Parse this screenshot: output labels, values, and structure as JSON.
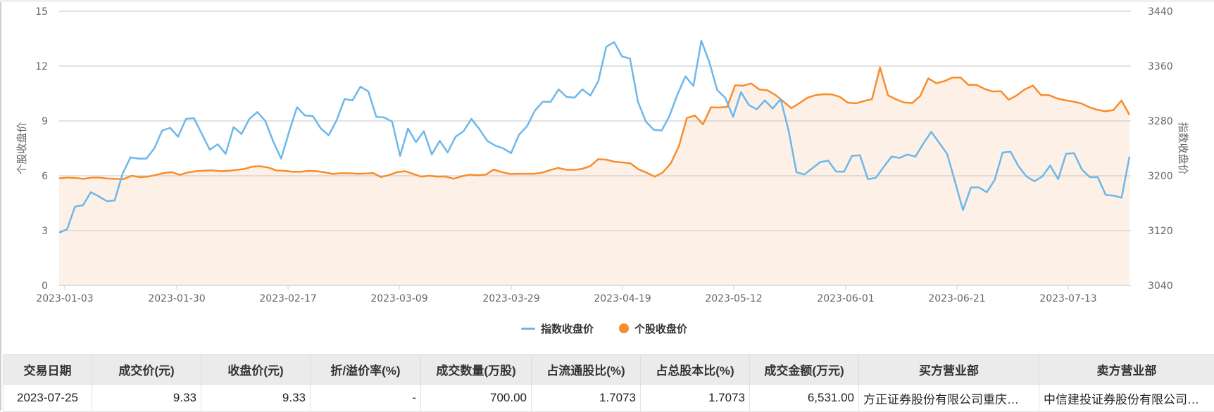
{
  "chart_data": {
    "type": "line",
    "title": "",
    "x_ticks": [
      "2023-01-03",
      "2023-01-30",
      "2023-02-17",
      "2023-03-09",
      "2023-03-29",
      "2023-04-19",
      "2023-05-12",
      "2023-06-01",
      "2023-06-21",
      "2023-07-13"
    ],
    "y_left": {
      "label": "个股收盘价",
      "ticks": [
        "0",
        "3",
        "6",
        "9",
        "12",
        "15"
      ],
      "range": [
        0,
        15
      ]
    },
    "y_right": {
      "label": "指数收盘价",
      "ticks": [
        "3040",
        "3120",
        "3200",
        "3280",
        "3360",
        "3440"
      ],
      "range": [
        3040,
        3440
      ]
    },
    "grid": true,
    "legend_position": "bottom",
    "series": [
      {
        "name": "指数收盘价",
        "axis": "right",
        "color": "#6cb8ea",
        "type": "line",
        "values": [
          3117,
          3122,
          3155,
          3157,
          3176,
          3170,
          3163,
          3164,
          3203,
          3227,
          3225,
          3225,
          3240,
          3266,
          3270,
          3257,
          3283,
          3284,
          3261,
          3238,
          3246,
          3232,
          3271,
          3261,
          3283,
          3293,
          3280,
          3250,
          3225,
          3264,
          3300,
          3288,
          3287,
          3269,
          3259,
          3281,
          3312,
          3310,
          3330,
          3323,
          3286,
          3285,
          3279,
          3229,
          3269,
          3249,
          3265,
          3231,
          3251,
          3234,
          3257,
          3265,
          3283,
          3268,
          3251,
          3244,
          3240,
          3233,
          3260,
          3272,
          3295,
          3308,
          3308,
          3326,
          3315,
          3314,
          3326,
          3317,
          3338,
          3388,
          3395,
          3374,
          3371,
          3308,
          3279,
          3267,
          3266,
          3288,
          3319,
          3345,
          3331,
          3397,
          3366,
          3325,
          3314,
          3286,
          3322,
          3303,
          3297,
          3310,
          3298,
          3312,
          3266,
          3205,
          3202,
          3211,
          3220,
          3222,
          3206,
          3206,
          3229,
          3230,
          3195,
          3197,
          3213,
          3228,
          3226,
          3231,
          3228,
          3247,
          3264,
          3248,
          3232,
          3191,
          3150,
          3183,
          3183,
          3176,
          3194,
          3234,
          3235,
          3214,
          3199,
          3192,
          3199,
          3215,
          3195,
          3232,
          3233,
          3209,
          3198,
          3198,
          3172,
          3171,
          3168,
          3228
        ]
      },
      {
        "name": "个股收盘价",
        "axis": "left",
        "color": "#f98c2b",
        "type": "area",
        "fill": "#fdf0e7",
        "values": [
          5.86,
          5.9,
          5.88,
          5.83,
          5.9,
          5.9,
          5.85,
          5.83,
          5.82,
          6.0,
          5.93,
          5.95,
          6.04,
          6.15,
          6.2,
          6.05,
          6.18,
          6.25,
          6.28,
          6.3,
          6.25,
          6.27,
          6.32,
          6.37,
          6.5,
          6.52,
          6.45,
          6.29,
          6.27,
          6.22,
          6.22,
          6.27,
          6.25,
          6.19,
          6.1,
          6.14,
          6.14,
          6.11,
          6.12,
          6.15,
          5.93,
          6.04,
          6.2,
          6.25,
          6.1,
          5.95,
          6.0,
          5.95,
          5.96,
          5.84,
          5.97,
          6.06,
          6.03,
          6.06,
          6.34,
          6.2,
          6.1,
          6.11,
          6.11,
          6.11,
          6.17,
          6.31,
          6.43,
          6.33,
          6.32,
          6.38,
          6.53,
          6.91,
          6.88,
          6.77,
          6.73,
          6.68,
          6.35,
          6.17,
          5.95,
          6.18,
          6.68,
          7.61,
          9.16,
          9.3,
          8.81,
          9.75,
          9.73,
          9.77,
          10.95,
          10.93,
          11.05,
          10.72,
          10.68,
          10.42,
          10.06,
          9.7,
          9.98,
          10.27,
          10.41,
          10.46,
          10.45,
          10.32,
          10.0,
          9.96,
          10.09,
          10.19,
          11.93,
          10.4,
          10.18,
          10.01,
          9.98,
          10.37,
          11.33,
          11.06,
          11.18,
          11.37,
          11.38,
          10.97,
          10.97,
          10.75,
          10.61,
          10.63,
          10.16,
          10.4,
          10.73,
          10.93,
          10.42,
          10.41,
          10.23,
          10.13,
          10.06,
          9.96,
          9.75,
          9.61,
          9.53,
          9.59,
          10.12,
          9.33
        ]
      }
    ]
  },
  "legend": {
    "items": [
      {
        "label": "指数收盘价",
        "marker": "line",
        "color": "#6cb8ea"
      },
      {
        "label": "个股收盘价",
        "marker": "dot",
        "color": "#f98c2b"
      }
    ]
  },
  "table": {
    "headers": [
      "交易日期",
      "成交价(元)",
      "收盘价(元)",
      "折/溢价率(%)",
      "成交数量(万股)",
      "占流通股比(%)",
      "占总股本比(%)",
      "成交金额(万元)",
      "买方营业部",
      "卖方营业部"
    ],
    "rows": [
      [
        "2023-07-25",
        "9.33",
        "9.33",
        "-",
        "700.00",
        "1.7073",
        "1.7073",
        "6,531.00",
        "方正证券股份有限公司重庆…",
        "中信建投证券股份有限公司…"
      ]
    ]
  }
}
